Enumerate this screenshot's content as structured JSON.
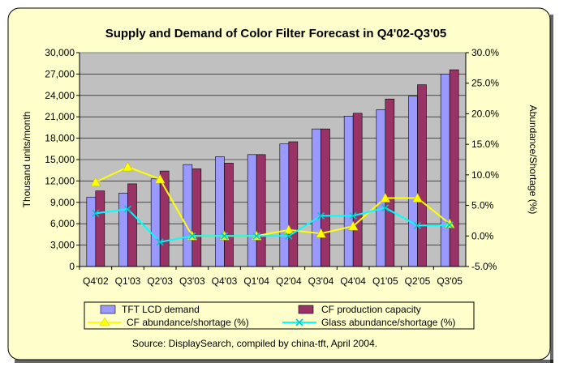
{
  "colors": {
    "page_bg": "#ffffcc",
    "plot_bg": "#c0c0c0",
    "tft_bar": "#9999ff",
    "cf_bar": "#993366",
    "cf_line": "#ffff00",
    "glass_line": "#00ffff"
  },
  "chart_data": {
    "type": "bar",
    "title": "Supply and Demand of Color Filter Forecast in Q4'02-Q3'05",
    "ylabel": "Thousand units/month",
    "y2label": "Abundance/Shortage (%)",
    "ylim": [
      0,
      30000
    ],
    "y2lim": [
      -5.0,
      30.0
    ],
    "yticks": [
      "0",
      "3,000",
      "6,000",
      "9,000",
      "12,000",
      "15,000",
      "18,000",
      "21,000",
      "24,000",
      "27,000",
      "30,000"
    ],
    "y2ticks": [
      "-5.0%",
      "0.0%",
      "5.0%",
      "10.0%",
      "15.0%",
      "20.0%",
      "25.0%",
      "30.0%"
    ],
    "grid": true,
    "legend_position": "bottom",
    "categories": [
      "Q4'02",
      "Q1'03",
      "Q2'03",
      "Q3'03",
      "Q4'03",
      "Q1'04",
      "Q2'04",
      "Q3'04",
      "Q4'04",
      "Q1'05",
      "Q2'05",
      "Q3'05"
    ],
    "series": [
      {
        "name": "TFT LCD demand",
        "kind": "bar",
        "axis": "left",
        "values": [
          9700,
          10300,
          12300,
          14300,
          15400,
          15700,
          17200,
          19300,
          21100,
          22000,
          23900,
          27000
        ]
      },
      {
        "name": "CF production capacity",
        "kind": "bar",
        "axis": "left",
        "values": [
          10600,
          11600,
          13400,
          13700,
          14500,
          15700,
          17500,
          19300,
          21500,
          23500,
          25500,
          27600
        ]
      },
      {
        "name": "CF abundance/shortage (%)",
        "kind": "line",
        "marker": "triangle",
        "axis": "right",
        "values": [
          8.8,
          11.3,
          9.3,
          0.0,
          0.0,
          0.0,
          1.0,
          0.4,
          1.6,
          6.2,
          6.2,
          2.0
        ]
      },
      {
        "name": "Glass abundance/shortage (%)",
        "kind": "line",
        "marker": "x",
        "axis": "right",
        "values": [
          3.7,
          4.4,
          -1.0,
          0.0,
          0.0,
          0.0,
          0.0,
          3.3,
          3.3,
          4.6,
          1.7,
          1.8
        ]
      }
    ],
    "source": "Source: DisplaySearch, compiled by china-tft, April 2004."
  }
}
